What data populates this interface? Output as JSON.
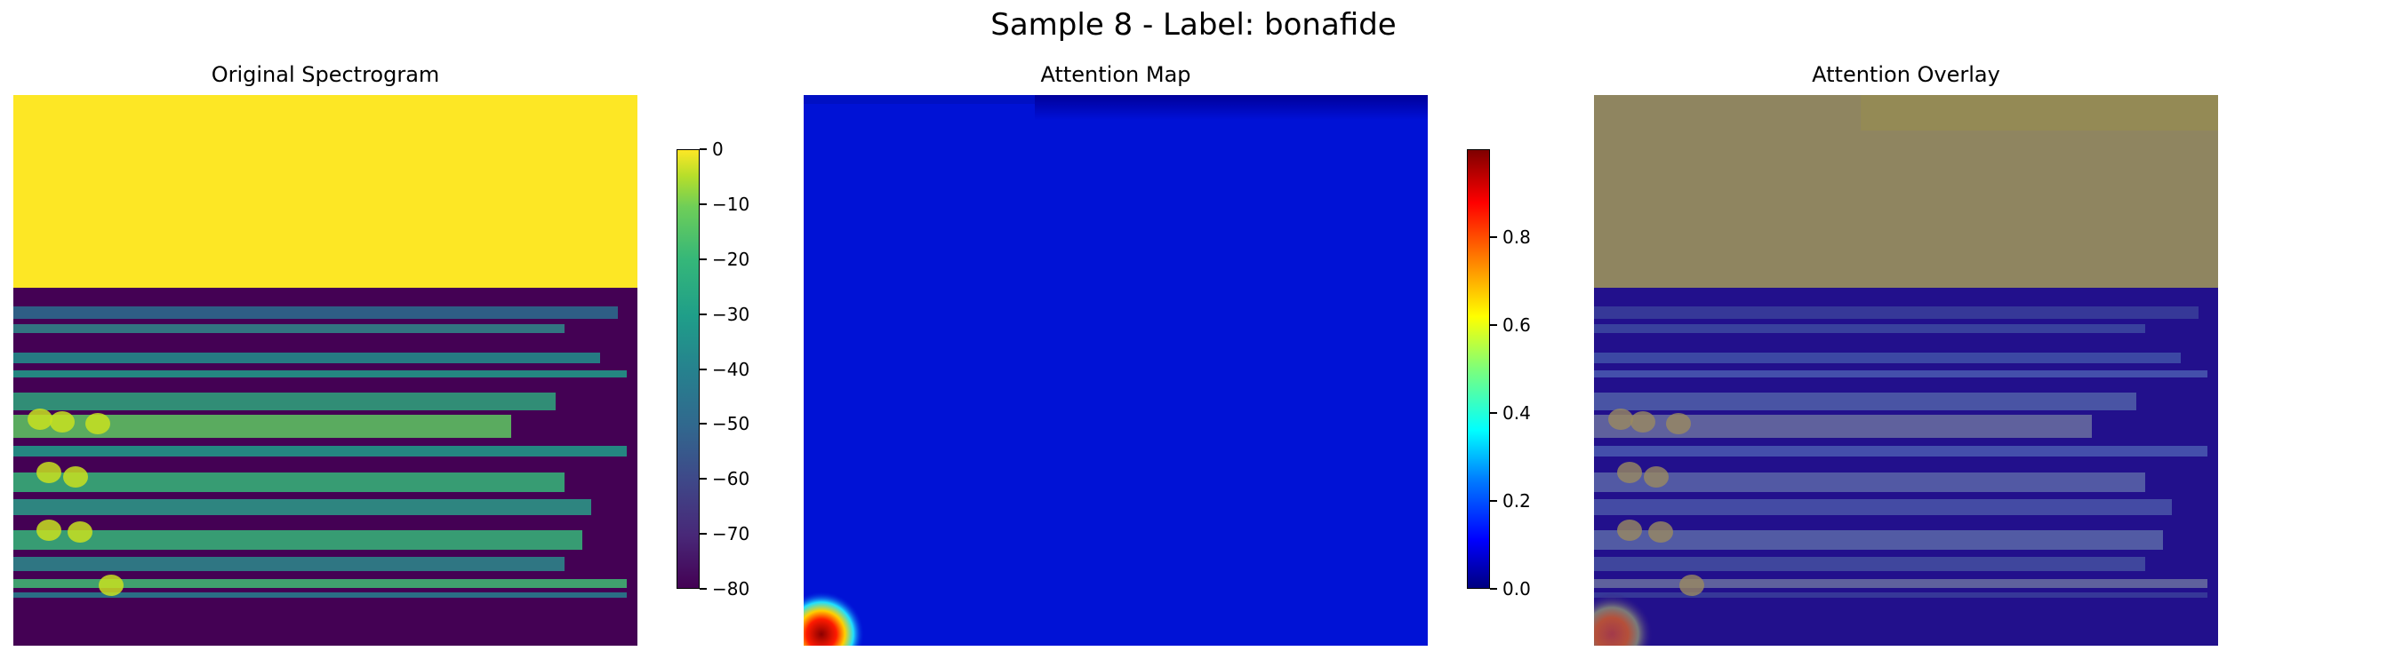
{
  "figure": {
    "suptitle": "Sample 8 - Label: bonafide"
  },
  "panels": [
    {
      "title": "Original Spectrogram",
      "kind": "spectrogram"
    },
    {
      "title": "Attention Map",
      "kind": "attention"
    },
    {
      "title": "Attention Overlay",
      "kind": "overlay"
    }
  ],
  "colorbars": [
    {
      "colormap": "viridis",
      "range": [
        -80,
        0
      ],
      "ticks": [
        "0",
        "−10",
        "−20",
        "−30",
        "−40",
        "−50",
        "−60",
        "−70",
        "−80"
      ]
    },
    {
      "colormap": "jet",
      "range": [
        0.0,
        1.0
      ],
      "ticks": [
        "0.8",
        "0.6",
        "0.4",
        "0.2",
        "0.0"
      ]
    }
  ],
  "chart_data": [
    {
      "type": "heatmap",
      "title": "Original Spectrogram",
      "colormap": "viridis",
      "value_range": [
        -80,
        0
      ],
      "notes": "top ~35% saturated at 0 dB (yellow); lower region dark purple with green/yellow harmonic bands",
      "colorbar_ticks": [
        0,
        -10,
        -20,
        -30,
        -40,
        -50,
        -60,
        -70,
        -80
      ]
    },
    {
      "type": "heatmap",
      "title": "Attention Map",
      "colormap": "jet",
      "value_range": [
        0.0,
        1.0
      ],
      "notes": "near-uniform low attention (~0.1) with a single hot spot (~1.0) at bottom-left corner",
      "colorbar_ticks": [
        0.0,
        0.2,
        0.4,
        0.6,
        0.8
      ]
    },
    {
      "type": "heatmap",
      "title": "Attention Overlay",
      "notes": "spectrogram blended with attention map",
      "colorbar_ticks": []
    }
  ]
}
